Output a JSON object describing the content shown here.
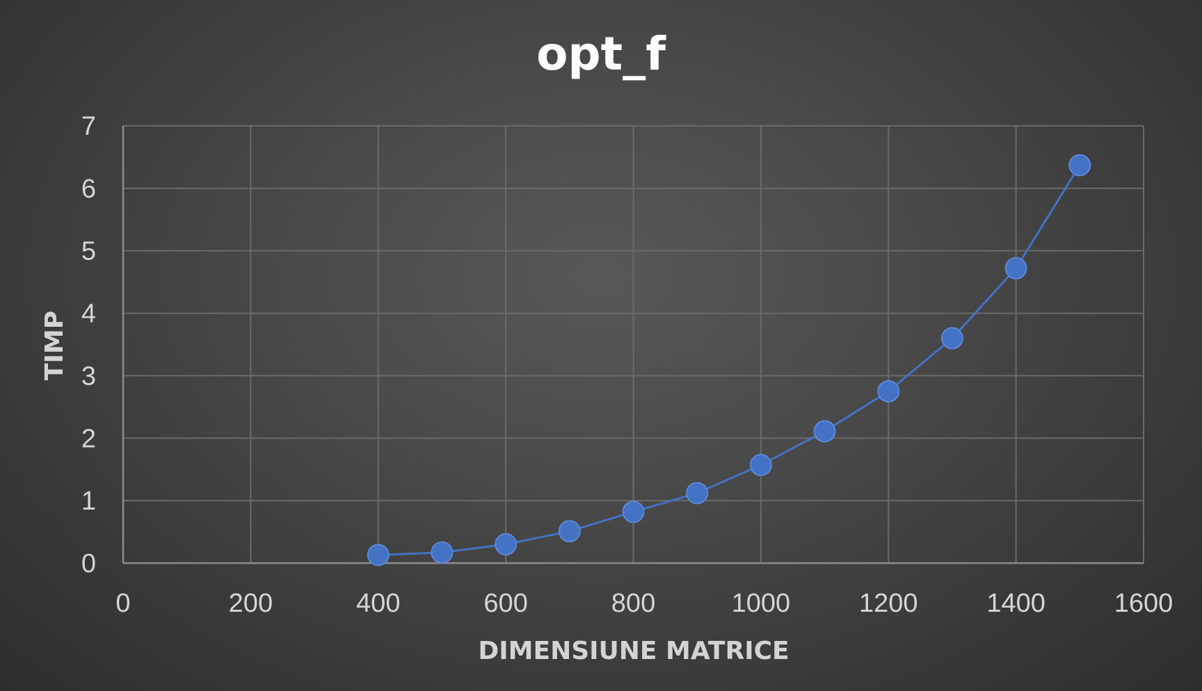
{
  "chart_data": {
    "type": "scatter",
    "title": "opt_f",
    "xlabel": "DIMENSIUNE MATRICE",
    "ylabel": "TIMP",
    "xlim": [
      0,
      1600
    ],
    "ylim": [
      0,
      7
    ],
    "x_ticks": [
      0,
      200,
      400,
      600,
      800,
      1000,
      1200,
      1400,
      1600
    ],
    "y_ticks": [
      0,
      1,
      2,
      3,
      4,
      5,
      6,
      7
    ],
    "grid": true,
    "legend": "none",
    "line_connected": true,
    "color": "#4472c4",
    "series": [
      {
        "x": [
          400,
          500,
          600,
          700,
          800,
          900,
          1000,
          1100,
          1200,
          1300,
          1400,
          1500
        ],
        "y": [
          0.13,
          0.17,
          0.3,
          0.51,
          0.82,
          1.12,
          1.57,
          2.11,
          2.75,
          3.6,
          4.72,
          6.37
        ]
      }
    ]
  }
}
